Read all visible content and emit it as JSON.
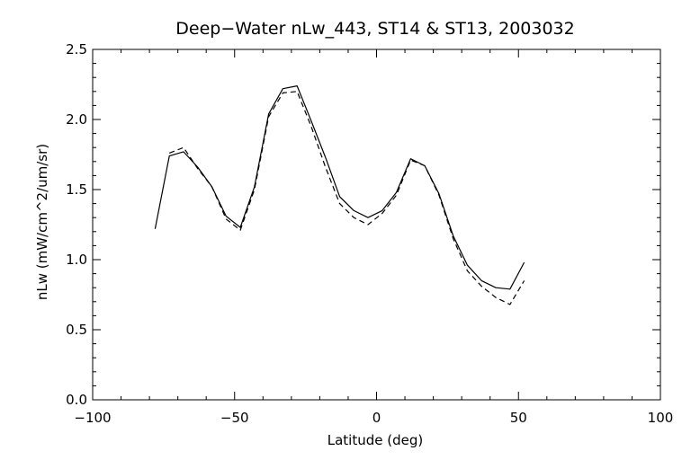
{
  "chart_data": {
    "type": "line",
    "title": "Deep−Water nLw_443, ST14 & ST13, 2003032",
    "xlabel": "Latitude (deg)",
    "ylabel": "nLw (mW/cm^2/um/sr)",
    "xlim": [
      -100,
      100
    ],
    "ylim": [
      0.0,
      2.5
    ],
    "x_ticks": [
      -100,
      -50,
      0,
      50,
      100
    ],
    "x_tick_labels": [
      "−100",
      "−50",
      "0",
      "50",
      "100"
    ],
    "y_ticks": [
      0.0,
      0.5,
      1.0,
      1.5,
      2.0,
      2.5
    ],
    "y_tick_labels": [
      "0.0",
      "0.5",
      "1.0",
      "1.5",
      "2.0",
      "2.5"
    ],
    "grid": false,
    "legend": "none",
    "series": [
      {
        "style": "solid",
        "x": [
          -78,
          -73,
          -68,
          -63,
          -58,
          -53,
          -48,
          -43,
          -38,
          -33,
          -28,
          -23,
          -18,
          -13,
          -8,
          -3,
          2,
          7,
          12,
          17,
          22,
          27,
          32,
          37,
          42,
          47,
          52
        ],
        "values": [
          1.22,
          1.74,
          1.77,
          1.66,
          1.52,
          1.31,
          1.23,
          1.52,
          2.04,
          2.22,
          2.24,
          1.99,
          1.73,
          1.45,
          1.35,
          1.3,
          1.35,
          1.48,
          1.72,
          1.67,
          1.47,
          1.17,
          0.96,
          0.85,
          0.8,
          0.79,
          0.98
        ]
      },
      {
        "style": "dashed",
        "x": [
          -73,
          -68,
          -63,
          -58,
          -53,
          -48,
          -43,
          -38,
          -33,
          -28,
          -23,
          -18,
          -13,
          -8,
          -3,
          2,
          7,
          12,
          17,
          22,
          27,
          32,
          37,
          42,
          47,
          52
        ],
        "values": [
          1.76,
          1.8,
          1.65,
          1.52,
          1.29,
          1.21,
          1.5,
          2.02,
          2.19,
          2.2,
          1.95,
          1.66,
          1.4,
          1.3,
          1.25,
          1.33,
          1.46,
          1.71,
          1.67,
          1.46,
          1.15,
          0.92,
          0.81,
          0.73,
          0.68,
          0.85
        ]
      }
    ]
  }
}
